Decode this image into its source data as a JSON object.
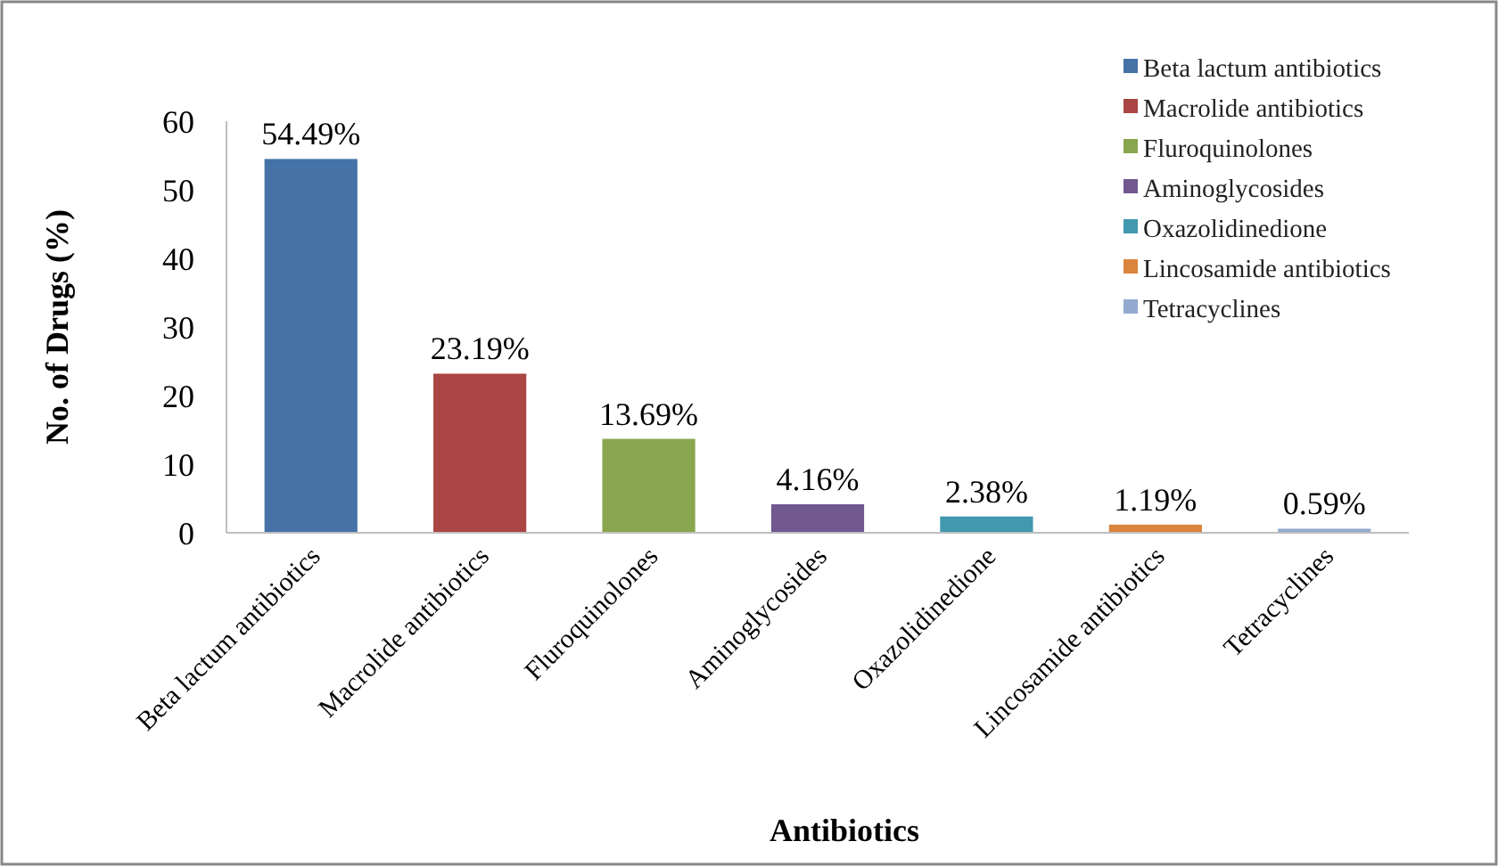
{
  "chart_data": {
    "type": "bar",
    "xlabel": "Antibiotics",
    "ylabel": "No. of Drugs (%)",
    "stacked": true,
    "categories": [
      "Beta lactum antibiotics",
      "Macrolide antibiotics",
      "Fluroquinolones",
      "Aminoglycosides",
      "Oxazolidinedione",
      "Lincosamide antibiotics",
      "Tetracyclines"
    ],
    "series": [
      {
        "name": "Beta lactum antibiotics",
        "color": "#4572a7",
        "values": [
          54.49,
          null,
          null,
          null,
          null,
          null,
          null
        ],
        "value_labels": [
          "54.49%",
          null,
          null,
          null,
          null,
          null,
          null
        ]
      },
      {
        "name": "Macrolide antibiotics",
        "color": "#aa4643",
        "values": [
          null,
          23.19,
          null,
          null,
          null,
          null,
          null
        ],
        "value_labels": [
          null,
          "23.19%",
          null,
          null,
          null,
          null,
          null
        ]
      },
      {
        "name": "Fluroquinolones",
        "color": "#89a54e",
        "values": [
          null,
          null,
          13.69,
          null,
          null,
          null,
          null
        ],
        "value_labels": [
          null,
          null,
          "13.69%",
          null,
          null,
          null,
          null
        ]
      },
      {
        "name": "Aminoglycosides",
        "color": "#71588f",
        "values": [
          null,
          null,
          null,
          4.16,
          null,
          null,
          null
        ],
        "value_labels": [
          null,
          null,
          null,
          "4.16%",
          null,
          null,
          null
        ]
      },
      {
        "name": "Oxazolidinedione",
        "color": "#4198af",
        "values": [
          null,
          null,
          null,
          null,
          2.38,
          null,
          null
        ],
        "value_labels": [
          null,
          null,
          null,
          null,
          "2.38%",
          null,
          null
        ]
      },
      {
        "name": "Lincosamide antibiotics",
        "color": "#db843d",
        "values": [
          null,
          null,
          null,
          null,
          null,
          1.19,
          null
        ],
        "value_labels": [
          null,
          null,
          null,
          null,
          null,
          "1.19%",
          null
        ]
      },
      {
        "name": "Tetracyclines",
        "color": "#93a9cf",
        "values": [
          null,
          null,
          null,
          null,
          null,
          null,
          0.59
        ],
        "value_labels": [
          null,
          null,
          null,
          null,
          null,
          null,
          "0.59%"
        ]
      }
    ],
    "ylim": [
      0,
      60
    ],
    "yticks": [
      0,
      10,
      20,
      30,
      40,
      50,
      60
    ],
    "grid": false,
    "legend": "top right"
  }
}
